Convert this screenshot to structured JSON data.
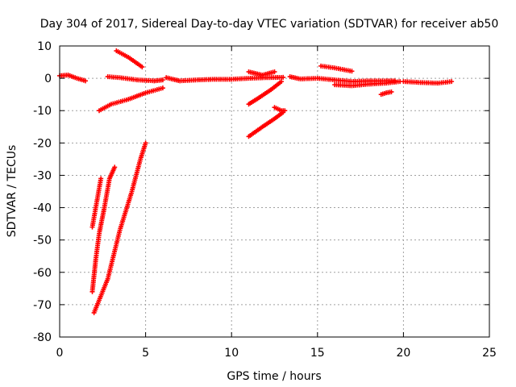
{
  "chart_data": {
    "type": "scatter",
    "title": "Day 304 of 2017, Sidereal Day-to-day VTEC variation (SDTVAR) for receiver ab50",
    "xlabel": "GPS time / hours",
    "ylabel": "SDTVAR / TECUs",
    "xlim": [
      0,
      25
    ],
    "ylim": [
      -80,
      10
    ],
    "xticks": [
      0,
      5,
      10,
      15,
      20,
      25
    ],
    "yticks": [
      10,
      0,
      -10,
      -20,
      -30,
      -40,
      -50,
      -60,
      -70,
      -80
    ],
    "grid": true,
    "marker": "plus",
    "color": "#ff0000",
    "series": [
      {
        "segments": [
          [
            [
              0.0,
              0.8
            ],
            [
              0.5,
              1.0
            ],
            [
              1.0,
              0.0
            ],
            [
              1.5,
              -0.8
            ]
          ],
          [
            [
              2.8,
              0.5
            ],
            [
              3.5,
              0.2
            ],
            [
              4.5,
              -0.5
            ],
            [
              5.5,
              -0.8
            ],
            [
              6.0,
              -0.5
            ]
          ],
          [
            [
              6.2,
              0.2
            ],
            [
              7.0,
              -0.8
            ],
            [
              8.0,
              -0.5
            ],
            [
              9.0,
              -0.3
            ],
            [
              10.0,
              -0.3
            ],
            [
              11.0,
              0.0
            ],
            [
              12.0,
              0.2
            ],
            [
              13.0,
              0.3
            ]
          ],
          [
            [
              13.4,
              0.5
            ],
            [
              14.0,
              -0.2
            ],
            [
              15.0,
              0.0
            ],
            [
              16.0,
              -0.5
            ],
            [
              17.0,
              -1.0
            ],
            [
              18.0,
              -0.8
            ],
            [
              19.0,
              -0.8
            ],
            [
              19.5,
              -0.8
            ]
          ],
          [
            [
              16.0,
              -2.0
            ],
            [
              17.0,
              -2.3
            ],
            [
              18.0,
              -1.8
            ],
            [
              19.0,
              -1.5
            ],
            [
              19.8,
              -1.0
            ]
          ],
          [
            [
              20.0,
              -1.0
            ],
            [
              21.0,
              -1.3
            ],
            [
              22.0,
              -1.5
            ],
            [
              22.8,
              -1.0
            ]
          ],
          [
            [
              3.3,
              8.5
            ],
            [
              4.0,
              6.5
            ],
            [
              4.8,
              3.5
            ]
          ],
          [
            [
              2.3,
              -10.0
            ],
            [
              3.0,
              -8.0
            ],
            [
              4.0,
              -6.5
            ],
            [
              5.0,
              -4.5
            ],
            [
              6.0,
              -3.0
            ]
          ],
          [
            [
              11.0,
              2.0
            ],
            [
              11.8,
              1.0
            ],
            [
              12.5,
              2.0
            ]
          ],
          [
            [
              11.0,
              -8.0
            ],
            [
              11.6,
              -6.0
            ],
            [
              12.3,
              -3.5
            ],
            [
              12.9,
              -1.0
            ]
          ],
          [
            [
              15.2,
              3.8
            ],
            [
              16.0,
              3.2
            ],
            [
              17.0,
              2.2
            ]
          ],
          [
            [
              12.5,
              -9.0
            ],
            [
              12.9,
              -10.0
            ],
            [
              13.1,
              -10.0
            ]
          ],
          [
            [
              11.0,
              -18.0
            ],
            [
              11.8,
              -15.0
            ],
            [
              12.5,
              -12.5
            ],
            [
              13.0,
              -10.5
            ]
          ],
          [
            [
              18.7,
              -5.0
            ],
            [
              19.0,
              -4.5
            ],
            [
              19.3,
              -4.2
            ]
          ],
          [
            [
              1.9,
              -46.0
            ],
            [
              2.1,
              -40.0
            ],
            [
              2.3,
              -34.0
            ],
            [
              2.4,
              -31.0
            ]
          ],
          [
            [
              1.9,
              -66.0
            ],
            [
              2.1,
              -56.0
            ],
            [
              2.3,
              -48.0
            ],
            [
              2.6,
              -40.0
            ],
            [
              2.9,
              -31.0
            ],
            [
              3.2,
              -27.5
            ]
          ],
          [
            [
              2.0,
              -72.5
            ],
            [
              2.8,
              -62.0
            ],
            [
              3.5,
              -47.0
            ],
            [
              4.2,
              -35.0
            ],
            [
              4.7,
              -25.0
            ],
            [
              5.0,
              -20.0
            ]
          ]
        ]
      }
    ]
  }
}
